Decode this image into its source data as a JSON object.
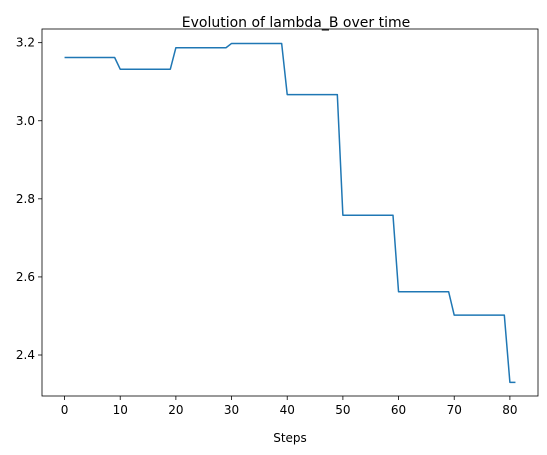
{
  "chart_data": {
    "type": "line",
    "title": "Evolution of lambda_B over time",
    "xlabel": "Steps",
    "ylabel": "",
    "xlim": [
      -4.05,
      85.05
    ],
    "ylim": [
      2.295,
      3.235
    ],
    "xticks": [
      0,
      10,
      20,
      30,
      40,
      50,
      60,
      70,
      80
    ],
    "yticks": [
      2.4,
      2.6,
      2.8,
      3.0,
      3.2
    ],
    "ytick_labels": [
      "2.4",
      "2.6",
      "2.8",
      "3.0",
      "3.2"
    ],
    "grid": false,
    "color": "#1f77b4",
    "series": [
      {
        "x": [
          0,
          9,
          10,
          19,
          20,
          29,
          30,
          39,
          40,
          49,
          50,
          59,
          60,
          69,
          70,
          79,
          80,
          81
        ],
        "y": [
          3.162,
          3.162,
          3.132,
          3.132,
          3.187,
          3.187,
          3.198,
          3.198,
          3.067,
          3.067,
          2.758,
          2.758,
          2.562,
          2.562,
          2.502,
          2.502,
          2.33,
          2.33
        ]
      }
    ]
  }
}
